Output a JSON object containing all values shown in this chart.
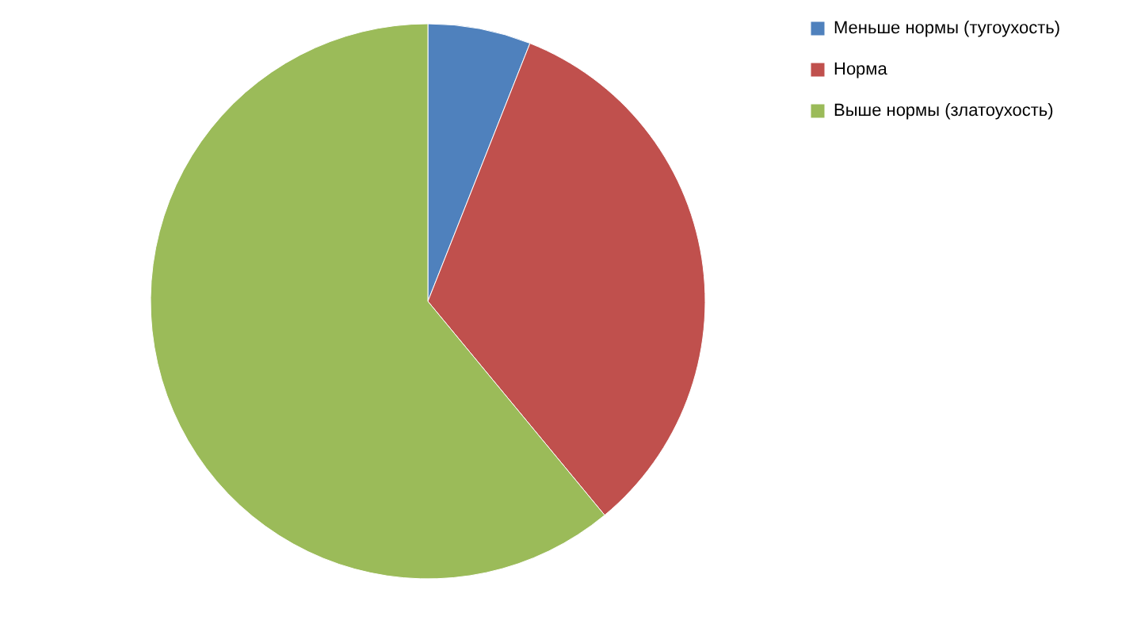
{
  "chart_data": {
    "type": "pie",
    "categories": [
      "Меньше  нормы (тугоухость)",
      "Норма",
      "Выше нормы (златоухость)"
    ],
    "values": [
      6,
      33,
      61
    ],
    "colors": [
      "#4f81bd",
      "#c0504d",
      "#9bbb59"
    ],
    "legend": "top right"
  }
}
